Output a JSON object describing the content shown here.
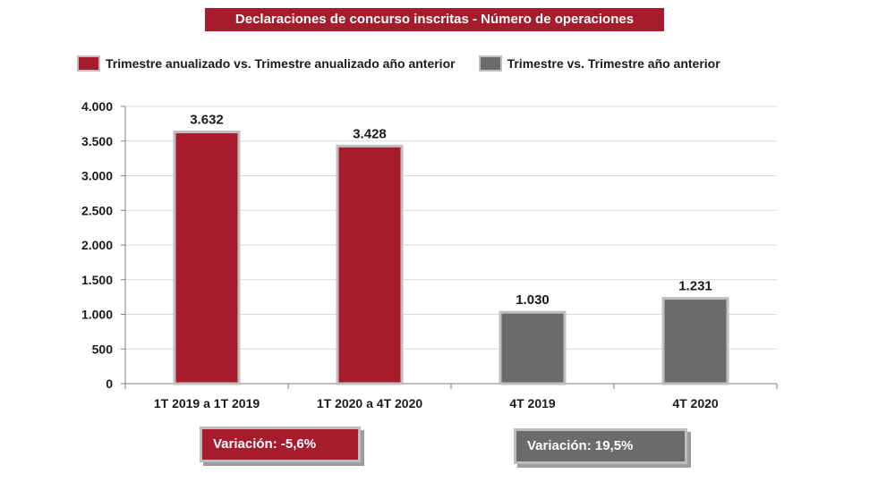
{
  "title": "Declaraciones de concurso inscritas - Número de operaciones",
  "legend": [
    {
      "label": "Trimestre anualizado vs. Trimestre anualizado año anterior",
      "color": "#A71C2C"
    },
    {
      "label": "Trimestre vs. Trimestre año anterior",
      "color": "#6B6B6B"
    }
  ],
  "variations": [
    {
      "label": "Variación:  -5,6%",
      "color": "#A71C2C"
    },
    {
      "label": "Variación: 19,5%",
      "color": "#6B6B6B"
    }
  ],
  "chart_data": {
    "type": "bar",
    "title": "Declaraciones de concurso inscritas - Número de operaciones",
    "categories": [
      "1T 2019 a 1T 2019",
      "1T 2020 a 4T 2020",
      "4T 2019",
      "4T 2020"
    ],
    "values": [
      3632,
      3428,
      1030,
      1231
    ],
    "value_labels": [
      "3.632",
      "3.428",
      "1.030",
      "1.231"
    ],
    "bar_colors": [
      "#A71C2C",
      "#A71C2C",
      "#6B6B6B",
      "#6B6B6B"
    ],
    "bar_border_color": "#BFBFBF",
    "ylim": [
      0,
      4000
    ],
    "yticks": [
      0,
      500,
      1000,
      1500,
      2000,
      2500,
      3000,
      3500,
      4000
    ],
    "ytick_labels": [
      "0",
      "500",
      "1.000",
      "1.500",
      "2.000",
      "2.500",
      "3.000",
      "3.500",
      "4.000"
    ],
    "grid": true,
    "legend_position": "top",
    "xlabel": "",
    "ylabel": ""
  }
}
